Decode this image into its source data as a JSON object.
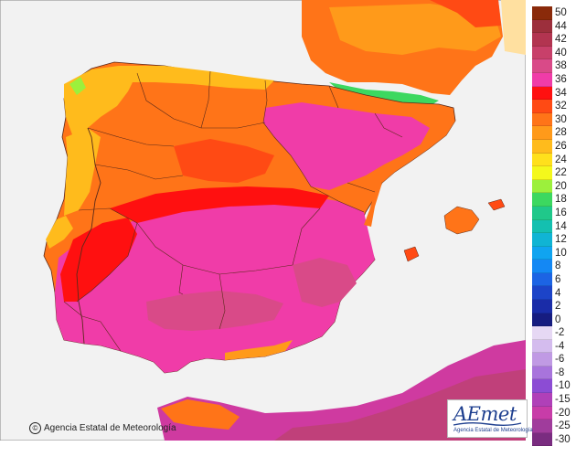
{
  "title": "",
  "credit": "Agencia Estatal de Meteorología",
  "logo": {
    "brand": "AEmet",
    "subtitle": "Agencia Estatal de Meteorología"
  },
  "legend": {
    "units": "",
    "warm": [
      {
        "label": "50",
        "color": "#8a2a0a"
      },
      {
        "label": "44",
        "color": "#9c2f3c"
      },
      {
        "label": "42",
        "color": "#b23450"
      },
      {
        "label": "40",
        "color": "#c8406a"
      },
      {
        "label": "38",
        "color": "#d94a88"
      },
      {
        "label": "36",
        "color": "#f03ca8"
      },
      {
        "label": "34",
        "color": "#ff1010"
      },
      {
        "label": "32",
        "color": "#ff4a14"
      },
      {
        "label": "30",
        "color": "#ff7418"
      },
      {
        "label": "28",
        "color": "#ff9a1a"
      },
      {
        "label": "26",
        "color": "#ffbb1c"
      },
      {
        "label": "24",
        "color": "#ffe01c"
      },
      {
        "label": "22",
        "color": "#f4f81c"
      },
      {
        "label": "20",
        "color": "#9cf03c"
      },
      {
        "label": "18",
        "color": "#3cd860"
      },
      {
        "label": "16",
        "color": "#20c88a"
      },
      {
        "label": "14",
        "color": "#14c0b0"
      },
      {
        "label": "12",
        "color": "#10b4d4"
      },
      {
        "label": "10",
        "color": "#10a4f0"
      },
      {
        "label": "8",
        "color": "#1488f4"
      },
      {
        "label": "6",
        "color": "#1c64e4"
      },
      {
        "label": "4",
        "color": "#1c44c8"
      },
      {
        "label": "2",
        "color": "#1a2ca8"
      },
      {
        "label": "0",
        "color": "#161c80"
      }
    ],
    "cold": [
      {
        "label": "-2",
        "color": "#e6d8f4"
      },
      {
        "label": "-4",
        "color": "#d4bcee"
      },
      {
        "label": "-6",
        "color": "#c09ae4"
      },
      {
        "label": "-8",
        "color": "#a874dc"
      },
      {
        "label": "-10",
        "color": "#8c4cd4"
      },
      {
        "label": "-15",
        "color": "#b040b8"
      },
      {
        "label": "-20",
        "color": "#c83ca8"
      },
      {
        "label": "-25",
        "color": "#a03c9c"
      },
      {
        "label": "-30",
        "color": "#7a2c80"
      }
    ]
  },
  "colors": {
    "sea": "#f2f2f2",
    "foreign_land": "#d9d9d9",
    "border": "#5a2a1a"
  },
  "regions": {
    "france": "",
    "portugal": "",
    "spain": "",
    "africa": "",
    "balearics": ""
  }
}
